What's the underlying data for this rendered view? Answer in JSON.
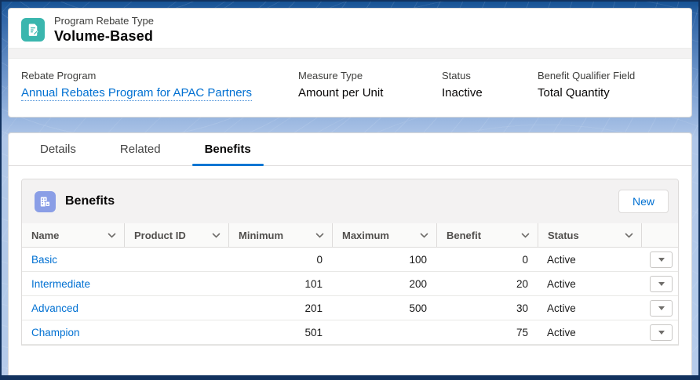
{
  "page": {
    "entity_label": "Program Rebate Type",
    "entity_name": "Volume-Based"
  },
  "highlights": {
    "fields": [
      {
        "label": "Rebate Program",
        "value": "Annual Rebates Program for APAC Partners",
        "is_link": true
      },
      {
        "label": "Measure Type",
        "value": "Amount per Unit",
        "is_link": false
      },
      {
        "label": "Status",
        "value": "Inactive",
        "is_link": false
      },
      {
        "label": "Benefit Qualifier Field",
        "value": "Total Quantity",
        "is_link": false
      }
    ]
  },
  "tabs": [
    {
      "label": "Details",
      "active": false
    },
    {
      "label": "Related",
      "active": false
    },
    {
      "label": "Benefits",
      "active": true
    }
  ],
  "benefits_card": {
    "title": "Benefits",
    "new_button_label": "New",
    "table": {
      "columns": [
        "Name",
        "Product ID",
        "Minimum",
        "Maximum",
        "Benefit",
        "Status",
        ""
      ],
      "numeric_columns": [
        2,
        3,
        4
      ],
      "rows": [
        {
          "cells": [
            "Basic",
            "",
            "0",
            "100",
            "0",
            "Active"
          ]
        },
        {
          "cells": [
            "Intermediate",
            "",
            "101",
            "200",
            "20",
            "Active"
          ]
        },
        {
          "cells": [
            "Advanced",
            "",
            "201",
            "500",
            "30",
            "Active"
          ]
        },
        {
          "cells": [
            "Champion",
            "",
            "501",
            "",
            "75",
            "Active"
          ]
        }
      ]
    }
  },
  "icons": {
    "record_icon": "rebate-type-document-pencil-icon",
    "benefits_icon": "benefit-grid-icon",
    "sort_icon": "chevron-down-icon",
    "row_action_icon": "caret-down-icon"
  },
  "colors": {
    "record_icon_bg": "#3ab6ae",
    "benefits_icon_bg": "#8a9ee6",
    "link_blue": "#0070d2",
    "active_tab_underline": "#0176d3",
    "header_band": "#f3f2f2",
    "top_chrome": "#175293",
    "bottom_chrome": "#12325e"
  }
}
